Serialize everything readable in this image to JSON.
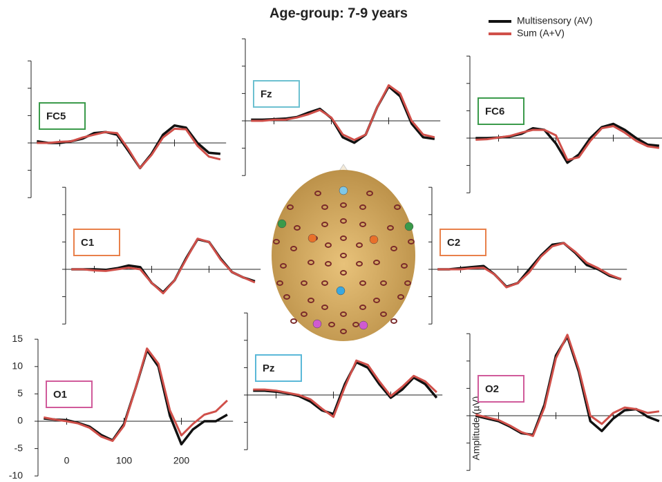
{
  "figure": {
    "title": "Age-group: 7-9 years",
    "y_label": "Amplitude (µV)"
  },
  "chart_data": [
    {
      "type": "line",
      "title": "FC5",
      "label_color": "#3a9a4a",
      "tick_labels": false,
      "x": [
        -40,
        -20,
        0,
        20,
        40,
        60,
        80,
        100,
        120,
        140,
        160,
        180,
        200,
        220,
        240,
        260,
        280
      ],
      "xlim": [
        -50,
        290
      ],
      "ylim": [
        -10,
        15
      ],
      "xticks": [
        0,
        100,
        200
      ],
      "yticks": [
        -10,
        -5,
        0,
        5,
        10,
        15
      ],
      "series": [
        {
          "name": "Multisensory (AV)",
          "color": "#111111",
          "values": [
            0.3,
            0,
            0,
            0.3,
            0.8,
            1.8,
            2,
            1.5,
            -1.5,
            -4.6,
            -2,
            1.5,
            3.2,
            2.8,
            0,
            -1.8,
            -2
          ]
        },
        {
          "name": "Sum (A+V)",
          "color": "#d0504a",
          "values": [
            0,
            0,
            0.2,
            0.3,
            1,
            1.5,
            2,
            1.8,
            -1.2,
            -4.6,
            -2.2,
            1,
            2.6,
            2.5,
            -0.5,
            -2.5,
            -3
          ]
        }
      ]
    },
    {
      "type": "line",
      "title": "Fz",
      "label_color": "#6cc0d0",
      "tick_labels": false,
      "x": [
        -40,
        -20,
        0,
        20,
        40,
        60,
        80,
        100,
        120,
        140,
        160,
        180,
        200,
        220,
        240,
        260,
        280
      ],
      "xlim": [
        -50,
        290
      ],
      "ylim": [
        -10,
        15
      ],
      "xticks": [
        0,
        100,
        200
      ],
      "yticks": [
        -10,
        -5,
        0,
        5,
        10,
        15
      ],
      "series": [
        {
          "name": "Multisensory (AV)",
          "color": "#111111",
          "values": [
            0.2,
            0.2,
            0.3,
            0.4,
            0.7,
            1.5,
            2.2,
            0.5,
            -3,
            -4,
            -2.5,
            2.5,
            6.3,
            4.5,
            -0.5,
            -3,
            -3.3
          ]
        },
        {
          "name": "Sum (A+V)",
          "color": "#d0504a",
          "values": [
            0,
            0,
            0.2,
            0.2,
            0.6,
            1.2,
            2,
            0.6,
            -2.5,
            -3.5,
            -2.5,
            2.5,
            6.5,
            5,
            0,
            -2.5,
            -3
          ]
        }
      ]
    },
    {
      "type": "line",
      "title": "FC6",
      "label_color": "#3a9a4a",
      "tick_labels": false,
      "x": [
        -40,
        -20,
        0,
        20,
        40,
        60,
        80,
        100,
        120,
        140,
        160,
        180,
        200,
        220,
        240,
        260,
        280
      ],
      "xlim": [
        -50,
        290
      ],
      "ylim": [
        -10,
        15
      ],
      "xticks": [
        0,
        100,
        200
      ],
      "yticks": [
        -10,
        -5,
        0,
        5,
        10,
        15
      ],
      "series": [
        {
          "name": "Multisensory (AV)",
          "color": "#111111",
          "values": [
            0,
            0,
            0.1,
            0.3,
            0.8,
            1.8,
            1.5,
            -1,
            -4.5,
            -3,
            0,
            2,
            2.6,
            1.5,
            0,
            -1.2,
            -1.4
          ]
        },
        {
          "name": "Sum (A+V)",
          "color": "#d0504a",
          "values": [
            -0.3,
            -0.2,
            0.1,
            0.4,
            1,
            1.5,
            1.5,
            0.5,
            -4,
            -3.5,
            -0.5,
            1.8,
            2.2,
            1,
            -0.5,
            -1.5,
            -1.8
          ]
        }
      ]
    },
    {
      "type": "line",
      "title": "C1",
      "label_color": "#e8804a",
      "tick_labels": false,
      "x": [
        -40,
        -20,
        0,
        20,
        40,
        60,
        80,
        100,
        120,
        140,
        160,
        180,
        200,
        220,
        240,
        260,
        280
      ],
      "xlim": [
        -50,
        290
      ],
      "ylim": [
        -10,
        15
      ],
      "xticks": [
        0,
        100,
        200
      ],
      "yticks": [
        -10,
        -5,
        0,
        5,
        10,
        15
      ],
      "series": [
        {
          "name": "Multisensory (AV)",
          "color": "#111111",
          "values": [
            0,
            0,
            0,
            -0.1,
            0.2,
            0.7,
            0.4,
            -2.5,
            -4.2,
            -2,
            2,
            5.5,
            5,
            2,
            -0.5,
            -1.5,
            -2.2
          ]
        },
        {
          "name": "Sum (A+V)",
          "color": "#d0504a",
          "values": [
            0,
            0,
            -0.2,
            -0.3,
            0,
            0.3,
            0,
            -2.5,
            -4.4,
            -2,
            1.8,
            5.6,
            5,
            1.8,
            -0.5,
            -1.5,
            -2.4
          ]
        }
      ]
    },
    {
      "type": "line",
      "title": "C2",
      "label_color": "#e8804a",
      "tick_labels": false,
      "x": [
        -40,
        -20,
        0,
        20,
        40,
        60,
        80,
        100,
        120,
        140,
        160,
        180,
        200,
        220,
        240,
        260,
        280
      ],
      "xlim": [
        -50,
        290
      ],
      "ylim": [
        -10,
        15
      ],
      "xticks": [
        0,
        100,
        200
      ],
      "yticks": [
        -10,
        -5,
        0,
        5,
        10,
        15
      ],
      "series": [
        {
          "name": "Multisensory (AV)",
          "color": "#111111",
          "values": [
            0,
            0,
            0.2,
            0.4,
            0.6,
            -1,
            -3.2,
            -2.5,
            0,
            2.5,
            4.5,
            4.8,
            3,
            0.8,
            0,
            -1.2,
            -1.8
          ]
        },
        {
          "name": "Sum (A+V)",
          "color": "#d0504a",
          "values": [
            0,
            0,
            0,
            0.2,
            0.3,
            -1,
            -3.3,
            -2.5,
            -0.5,
            2.3,
            4.2,
            4.8,
            3.2,
            1.2,
            0.2,
            -1,
            -1.8
          ]
        }
      ]
    },
    {
      "type": "line",
      "title": "O1",
      "label_color": "#d05a9a",
      "tick_labels": true,
      "x": [
        -40,
        -20,
        0,
        20,
        40,
        60,
        80,
        100,
        120,
        140,
        160,
        180,
        200,
        220,
        240,
        260,
        280
      ],
      "xlim": [
        -50,
        290
      ],
      "ylim": [
        -10,
        15
      ],
      "xticks": [
        0,
        100,
        200
      ],
      "yticks": [
        -10,
        -5,
        0,
        5,
        10,
        15
      ],
      "series": [
        {
          "name": "Multisensory (AV)",
          "color": "#111111",
          "values": [
            0.5,
            0.3,
            0.2,
            -0.3,
            -1,
            -2.5,
            -3.5,
            -0.5,
            6,
            13,
            10,
            1,
            -4.2,
            -1.5,
            0,
            0,
            1.2
          ]
        },
        {
          "name": "Sum (A+V)",
          "color": "#d0504a",
          "values": [
            0.7,
            0.3,
            0,
            -0.4,
            -1.2,
            -2.8,
            -3.6,
            -0.8,
            6,
            13.3,
            10.5,
            2,
            -2.6,
            -0.5,
            1.2,
            1.8,
            3.8
          ]
        }
      ]
    },
    {
      "type": "line",
      "title": "Pz",
      "label_color": "#5ab8d8",
      "tick_labels": false,
      "x": [
        -40,
        -20,
        0,
        20,
        40,
        60,
        80,
        100,
        120,
        140,
        160,
        180,
        200,
        220,
        240,
        260,
        280
      ],
      "xlim": [
        -50,
        290
      ],
      "ylim": [
        -10,
        15
      ],
      "xticks": [
        0,
        100,
        200
      ],
      "yticks": [
        -10,
        -5,
        0,
        5,
        10,
        15
      ],
      "series": [
        {
          "name": "Multisensory (AV)",
          "color": "#111111",
          "values": [
            0.8,
            0.8,
            0.6,
            0.3,
            -0.2,
            -1.2,
            -2.8,
            -3.5,
            2,
            6,
            5,
            2,
            -0.5,
            1,
            3.2,
            2,
            -0.5
          ]
        },
        {
          "name": "Sum (A+V)",
          "color": "#d0504a",
          "values": [
            1,
            1,
            0.8,
            0.4,
            0,
            -0.8,
            -2.5,
            -4,
            1.5,
            6.3,
            5.5,
            2.5,
            -0.2,
            1.5,
            3.5,
            2.5,
            0.5
          ]
        }
      ]
    },
    {
      "type": "line",
      "title": "O2",
      "label_color": "#d05a9a",
      "tick_labels": false,
      "x": [
        -40,
        -20,
        0,
        20,
        40,
        60,
        80,
        100,
        120,
        140,
        160,
        180,
        200,
        220,
        240,
        260,
        280
      ],
      "xlim": [
        -50,
        290
      ],
      "ylim": [
        -10,
        15
      ],
      "xticks": [
        0,
        100,
        200
      ],
      "yticks": [
        -10,
        -5,
        0,
        5,
        10,
        15
      ],
      "series": [
        {
          "name": "Multisensory (AV)",
          "color": "#111111",
          "values": [
            0,
            -0.5,
            -1,
            -2,
            -3.2,
            -3.5,
            2,
            11,
            14.5,
            8,
            -1,
            -2.8,
            -0.5,
            1,
            1.2,
            -0.2,
            -1
          ]
        },
        {
          "name": "Sum (A+V)",
          "color": "#d0504a",
          "values": [
            0.2,
            -0.3,
            -0.8,
            -1.8,
            -3,
            -3.7,
            1.5,
            10.5,
            14.8,
            8.5,
            0,
            -1.5,
            0.5,
            1.5,
            1.2,
            0.5,
            0.8
          ]
        }
      ]
    }
  ]
}
